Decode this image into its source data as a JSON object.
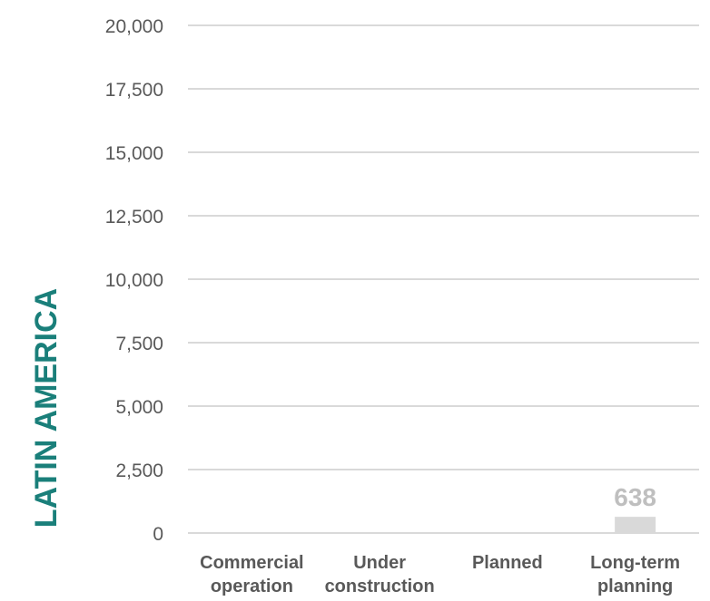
{
  "chart_data": {
    "type": "bar",
    "title": "LATIN AMERICA",
    "categories": [
      [
        "Commercial",
        "operation"
      ],
      [
        "Under",
        "construction"
      ],
      [
        "Planned"
      ],
      [
        "Long-term",
        "planning"
      ]
    ],
    "values": [
      0,
      0,
      0,
      638
    ],
    "data_labels": [
      "",
      "",
      "",
      "638"
    ],
    "ylim": [
      0,
      20000
    ],
    "yticks": [
      "0",
      "2,500",
      "5,000",
      "7,500",
      "10,000",
      "12,500",
      "15,000",
      "17,500",
      "20,000"
    ],
    "grid": true,
    "colors": {
      "title": "#1a7f7a",
      "bar": "#d9d9d9",
      "data_label": "#bfbfbf",
      "text": "#595959",
      "grid": "#d9d9d9"
    }
  }
}
